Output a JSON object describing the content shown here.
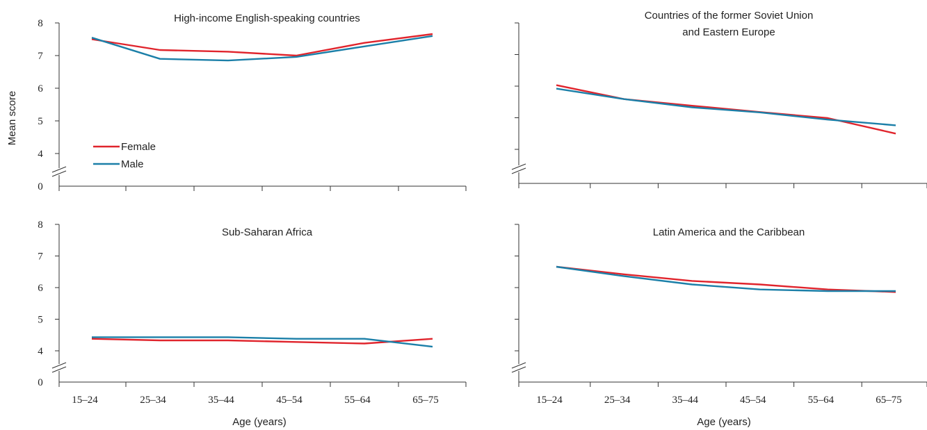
{
  "colors": {
    "female": "#e0242c",
    "male": "#1b7fa8",
    "axis": "#333333"
  },
  "y_label": "Mean score",
  "x_label": "Age (years)",
  "legend": [
    {
      "key": "female",
      "label": "Female"
    },
    {
      "key": "male",
      "label": "Male"
    }
  ],
  "chart_data": [
    {
      "type": "line",
      "title": [
        "High-income English-speaking countries"
      ],
      "categories": [
        "15–24",
        "25–34",
        "35–44",
        "45–54",
        "55–64",
        "65–75"
      ],
      "y_ticks": [
        "0",
        "4",
        "5",
        "6",
        "7",
        "8"
      ],
      "ylim": [
        4,
        8
      ],
      "axis_break": true,
      "series": [
        {
          "name": "Female",
          "values": [
            7.5,
            7.17,
            7.12,
            7.0,
            7.39,
            7.66
          ]
        },
        {
          "name": "Male",
          "values": [
            7.55,
            6.9,
            6.85,
            6.96,
            7.28,
            7.6
          ]
        }
      ]
    },
    {
      "type": "line",
      "title": [
        "Countries of the former Soviet Union",
        "and Eastern Europe"
      ],
      "categories": [
        "15–24",
        "25–34",
        "35–44",
        "45–54",
        "55–64",
        "65–75"
      ],
      "y_ticks": [],
      "ylim": [
        4,
        8
      ],
      "axis_break": true,
      "series": [
        {
          "name": "Female",
          "values": [
            6.03,
            5.59,
            5.38,
            5.18,
            4.99,
            4.5
          ]
        },
        {
          "name": "Male",
          "values": [
            5.92,
            5.59,
            5.33,
            5.17,
            4.94,
            4.76
          ]
        }
      ]
    },
    {
      "type": "line",
      "title": [
        "Sub-Saharan Africa"
      ],
      "categories": [
        "15–24",
        "25–34",
        "35–44",
        "45–54",
        "55–64",
        "65–75"
      ],
      "y_ticks": [
        "0",
        "4",
        "5",
        "6",
        "7",
        "8"
      ],
      "ylim": [
        4,
        8
      ],
      "axis_break": true,
      "series": [
        {
          "name": "Female",
          "values": [
            4.38,
            4.33,
            4.33,
            4.28,
            4.23,
            4.38
          ]
        },
        {
          "name": "Male",
          "values": [
            4.43,
            4.43,
            4.43,
            4.38,
            4.38,
            4.13
          ]
        }
      ]
    },
    {
      "type": "line",
      "title": [
        "Latin America and the Caribbean"
      ],
      "categories": [
        "15–24",
        "25–34",
        "35–44",
        "45–54",
        "55–64",
        "65–75"
      ],
      "y_ticks": [],
      "ylim": [
        4,
        8
      ],
      "axis_break": true,
      "series": [
        {
          "name": "Female",
          "values": [
            6.66,
            6.42,
            6.21,
            6.1,
            5.94,
            5.86
          ]
        },
        {
          "name": "Male",
          "values": [
            6.66,
            6.36,
            6.1,
            5.94,
            5.89,
            5.89
          ]
        }
      ]
    }
  ]
}
